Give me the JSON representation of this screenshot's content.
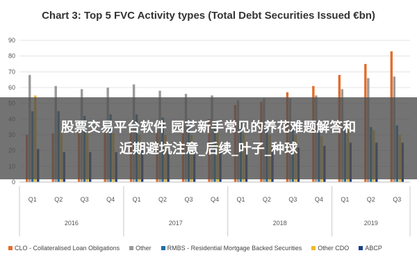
{
  "overlay": {
    "line1": "股票交易平台软件 园艺新手常见的养花难题解答和",
    "line2": "近期避坑注意_后续_叶子_种球"
  },
  "chart_data": {
    "type": "bar",
    "title": "Chart 3: Top 5 FVC Activity types (Total Debt Securities Issued €bn)",
    "xlabel": "",
    "ylabel": "",
    "ylim": [
      0,
      90
    ],
    "yticks": [
      0,
      10,
      20,
      30,
      40,
      50,
      60,
      70,
      80,
      90
    ],
    "grid": true,
    "legend_position": "bottom",
    "categories": [
      "Q1",
      "Q2",
      "Q3",
      "Q4",
      "Q1",
      "Q2",
      "Q3",
      "Q4",
      "Q1",
      "Q2",
      "Q3",
      "Q4",
      "Q1",
      "Q2",
      "Q3"
    ],
    "groups": [
      {
        "label": "2016",
        "count": 4
      },
      {
        "label": "2017",
        "count": 4
      },
      {
        "label": "2018",
        "count": 4
      },
      {
        "label": "2019",
        "count": 3
      }
    ],
    "series": [
      {
        "name": "CLO - Collateralised Loan Obligations",
        "color": "#E46C2B",
        "values": [
          30,
          31,
          32,
          31,
          32,
          33,
          36,
          40,
          49,
          51,
          57,
          61,
          68,
          75,
          83
        ]
      },
      {
        "name": "Other",
        "color": "#9A9A9A",
        "values": [
          68,
          61,
          59,
          60,
          62,
          58,
          56,
          55,
          52,
          53,
          53,
          55,
          59,
          66,
          67
        ]
      },
      {
        "name": "RMBS - Residential Mortgage Backed Securities",
        "color": "#1F6FA5",
        "values": [
          45,
          45,
          42,
          43,
          43,
          41,
          40,
          39,
          38,
          37,
          36,
          35,
          34,
          35,
          36
        ]
      },
      {
        "name": "Other CDO",
        "color": "#F0B92A",
        "values": [
          55,
          32,
          31,
          31,
          30,
          30,
          30,
          32,
          31,
          30,
          30,
          29,
          34,
          33,
          30
        ]
      },
      {
        "name": "ABCP",
        "color": "#1A3E8C",
        "values": [
          21,
          19,
          19,
          19,
          20,
          20,
          21,
          21,
          21,
          22,
          22,
          23,
          25,
          25,
          25
        ]
      }
    ]
  }
}
